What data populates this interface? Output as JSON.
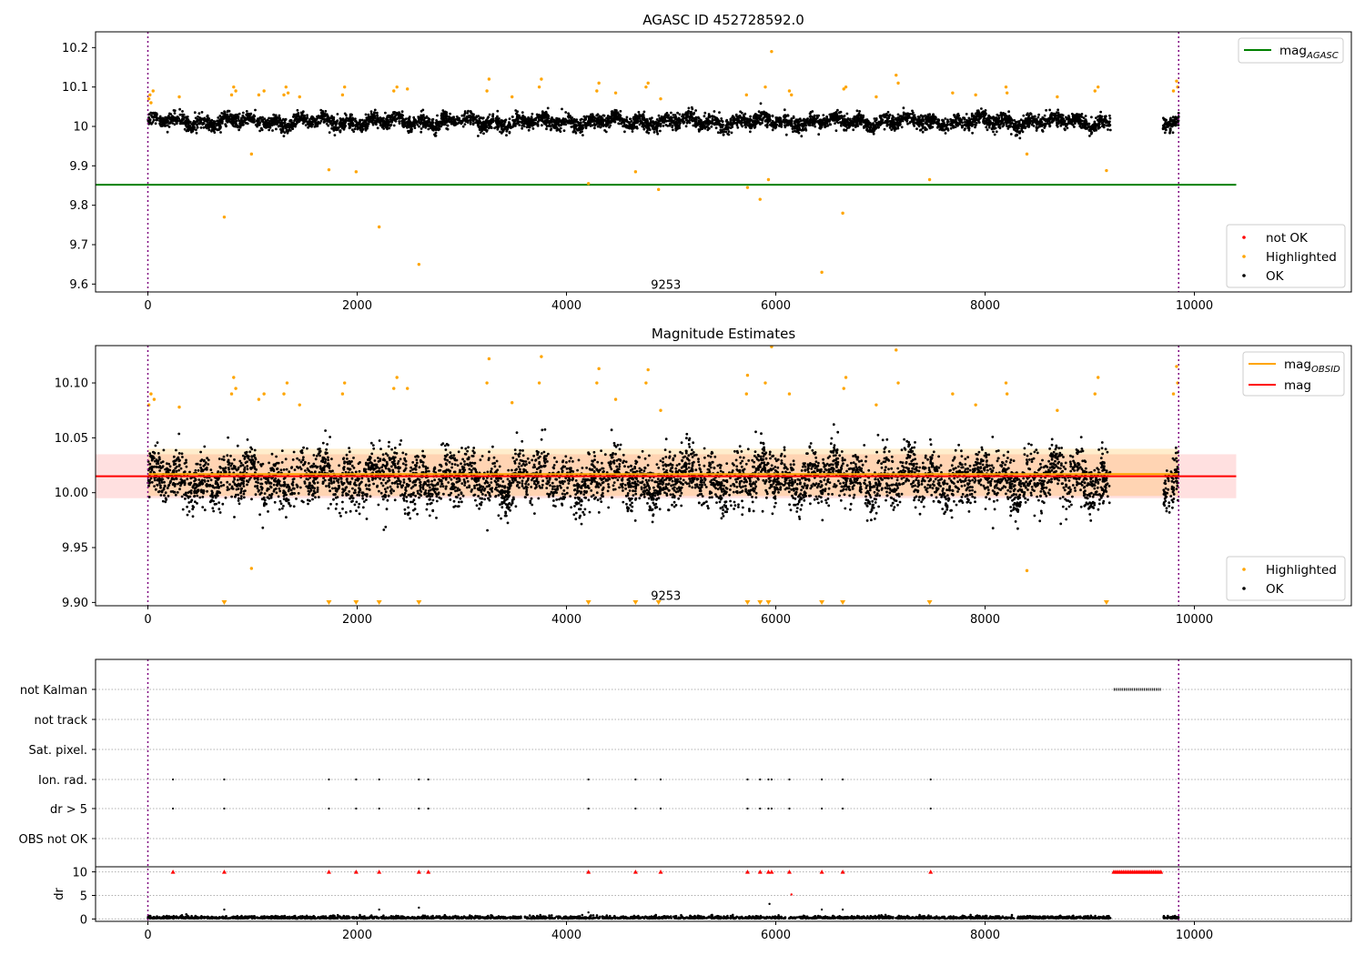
{
  "chart_data": [
    {
      "type": "scatter",
      "title": "AGASC ID 452728592.0",
      "xlim": [
        -500,
        11500
      ],
      "ylim": [
        9.58,
        10.24
      ],
      "xticks": [
        0,
        2000,
        4000,
        6000,
        8000,
        10000
      ],
      "yticks": [
        9.6,
        9.7,
        9.8,
        9.9,
        10.0,
        10.1,
        10.2
      ],
      "vlines": [
        0,
        9850
      ],
      "obsid_label": {
        "text": "9253",
        "x": 4950,
        "y": 9.595
      },
      "hline": {
        "name": "mag_AGASC",
        "y": 9.852,
        "x": [
          -500,
          10400
        ],
        "color": "#008000"
      },
      "legend_lines": [
        {
          "base": "mag",
          "sub": "AGASC",
          "color": "#008000"
        }
      ],
      "legend_points": [
        {
          "label": "not OK",
          "color": "#ff0000"
        },
        {
          "label": "Highlighted",
          "color": "#ffa500"
        },
        {
          "label": "OK",
          "color": "#000000"
        }
      ],
      "data_segments_x": [
        [
          0,
          9200
        ],
        [
          9700,
          9850
        ]
      ],
      "ok_band": {
        "base": 10.012,
        "spread": 0.018
      },
      "highlighted_points": [
        [
          10,
          10.07
        ],
        [
          20,
          10.08
        ],
        [
          30,
          10.06
        ],
        [
          50,
          10.09
        ],
        [
          300,
          10.075
        ],
        [
          730,
          9.77
        ],
        [
          800,
          10.08
        ],
        [
          820,
          10.1
        ],
        [
          840,
          10.09
        ],
        [
          990,
          9.93
        ],
        [
          1060,
          10.08
        ],
        [
          1110,
          10.09
        ],
        [
          1300,
          10.08
        ],
        [
          1320,
          10.1
        ],
        [
          1340,
          10.085
        ],
        [
          1450,
          10.075
        ],
        [
          1730,
          9.89
        ],
        [
          1860,
          10.08
        ],
        [
          1880,
          10.1
        ],
        [
          1990,
          9.885
        ],
        [
          2210,
          9.745
        ],
        [
          2350,
          10.09
        ],
        [
          2380,
          10.1
        ],
        [
          2480,
          10.095
        ],
        [
          2590,
          9.65
        ],
        [
          3240,
          10.09
        ],
        [
          3260,
          10.12
        ],
        [
          3480,
          10.075
        ],
        [
          3740,
          10.1
        ],
        [
          3760,
          10.12
        ],
        [
          4210,
          9.855
        ],
        [
          4290,
          10.09
        ],
        [
          4310,
          10.11
        ],
        [
          4470,
          10.085
        ],
        [
          4660,
          9.885
        ],
        [
          4760,
          10.1
        ],
        [
          4780,
          10.11
        ],
        [
          4880,
          9.84
        ],
        [
          4900,
          10.07
        ],
        [
          5720,
          10.08
        ],
        [
          5730,
          9.845
        ],
        [
          5850,
          9.815
        ],
        [
          5900,
          10.1
        ],
        [
          5930,
          9.865
        ],
        [
          5960,
          10.19
        ],
        [
          6130,
          10.09
        ],
        [
          6150,
          10.08
        ],
        [
          6440,
          9.63
        ],
        [
          6640,
          9.78
        ],
        [
          6650,
          10.095
        ],
        [
          6670,
          10.1
        ],
        [
          6960,
          10.075
        ],
        [
          7150,
          10.13
        ],
        [
          7170,
          10.11
        ],
        [
          7470,
          9.865
        ],
        [
          7690,
          10.085
        ],
        [
          7910,
          10.08
        ],
        [
          8200,
          10.1
        ],
        [
          8210,
          10.085
        ],
        [
          8400,
          9.93
        ],
        [
          8690,
          10.075
        ],
        [
          9050,
          10.09
        ],
        [
          9080,
          10.1
        ],
        [
          9160,
          9.888
        ],
        [
          9800,
          10.09
        ],
        [
          9830,
          10.115
        ],
        [
          9840,
          10.1
        ]
      ]
    },
    {
      "type": "scatter",
      "title": "Magnitude Estimates",
      "xlim": [
        -500,
        11500
      ],
      "ylim": [
        9.897,
        10.134
      ],
      "xticks": [
        0,
        2000,
        4000,
        6000,
        8000,
        10000
      ],
      "yticks": [
        9.9,
        9.95,
        10.0,
        10.05,
        10.1
      ],
      "ytick_labels": [
        "9.90",
        "9.95",
        "10.00",
        "10.05",
        "10.10"
      ],
      "vlines": [
        0,
        9850
      ],
      "obsid_label": {
        "text": "9253",
        "x": 4950,
        "y": 9.905
      },
      "mag_line": {
        "name": "mag",
        "y": 10.015,
        "x": [
          -500,
          10400
        ],
        "color": "#ff0000",
        "band": [
          9.995,
          10.035
        ]
      },
      "mag_obsid_line": {
        "name": "mag_OBSID",
        "y": 10.017,
        "x": [
          0,
          9850
        ],
        "color": "#ffa500",
        "band": [
          9.997,
          10.04
        ]
      },
      "legend_lines": [
        {
          "base": "mag",
          "sub": "OBSID",
          "color": "#ffa500"
        },
        {
          "base": "mag",
          "sub": "",
          "color": "#ff0000"
        }
      ],
      "legend_points": [
        {
          "label": "Highlighted",
          "color": "#ffa500"
        },
        {
          "label": "OK",
          "color": "#000000"
        }
      ],
      "data_segments_x": [
        [
          0,
          9200
        ],
        [
          9700,
          9850
        ]
      ],
      "ok_band": {
        "base": 10.012,
        "spread": 0.024
      },
      "highlighted_points": [
        [
          10,
          10.08
        ],
        [
          30,
          10.09
        ],
        [
          60,
          10.085
        ],
        [
          300,
          10.078
        ],
        [
          800,
          10.09
        ],
        [
          820,
          10.105
        ],
        [
          840,
          10.095
        ],
        [
          990,
          9.931
        ],
        [
          1060,
          10.085
        ],
        [
          1110,
          10.09
        ],
        [
          1300,
          10.09
        ],
        [
          1330,
          10.1
        ],
        [
          1450,
          10.08
        ],
        [
          1860,
          10.09
        ],
        [
          1880,
          10.1
        ],
        [
          2350,
          10.095
        ],
        [
          2380,
          10.105
        ],
        [
          2480,
          10.095
        ],
        [
          3240,
          10.1
        ],
        [
          3260,
          10.122
        ],
        [
          3480,
          10.082
        ],
        [
          3740,
          10.1
        ],
        [
          3760,
          10.124
        ],
        [
          4290,
          10.1
        ],
        [
          4310,
          10.113
        ],
        [
          4470,
          10.085
        ],
        [
          4760,
          10.1
        ],
        [
          4780,
          10.112
        ],
        [
          4900,
          10.075
        ],
        [
          5720,
          10.09
        ],
        [
          5730,
          10.107
        ],
        [
          5900,
          10.1
        ],
        [
          5960,
          10.133
        ],
        [
          6130,
          10.09
        ],
        [
          6650,
          10.095
        ],
        [
          6670,
          10.105
        ],
        [
          6960,
          10.08
        ],
        [
          7150,
          10.13
        ],
        [
          7170,
          10.1
        ],
        [
          7690,
          10.09
        ],
        [
          7910,
          10.08
        ],
        [
          8200,
          10.1
        ],
        [
          8210,
          10.09
        ],
        [
          8400,
          9.929
        ],
        [
          8690,
          10.075
        ],
        [
          9050,
          10.09
        ],
        [
          9080,
          10.105
        ],
        [
          9800,
          10.09
        ],
        [
          9830,
          10.115
        ],
        [
          9840,
          10.1
        ]
      ],
      "clipped_markers_x": [
        730,
        1730,
        1990,
        2210,
        2590,
        4210,
        4660,
        4880,
        5730,
        5850,
        5930,
        6440,
        6640,
        7470,
        9160
      ]
    },
    {
      "type": "scatter",
      "title": "",
      "xlim": [
        -500,
        11500
      ],
      "xticks": [
        0,
        2000,
        4000,
        6000,
        8000,
        10000
      ],
      "vlines": [
        0,
        9850
      ],
      "flag_rows": [
        "not Kalman",
        "not track",
        "Sat. pixel.",
        "Ion. rad.",
        "dr > 5",
        "OBS not OK"
      ],
      "flags": {
        "not Kalman": {
          "range": [
            9230,
            9680
          ]
        },
        "Ion. rad.": {
          "x": [
            240,
            730,
            1730,
            1990,
            2210,
            2590,
            2680,
            4210,
            4660,
            4900,
            5730,
            5850,
            5930,
            5960,
            6130,
            6440,
            6640,
            7480
          ]
        },
        "dr > 5": {
          "x": [
            240,
            730,
            1730,
            1990,
            2210,
            2590,
            2680,
            4210,
            4660,
            4900,
            5730,
            5850,
            5930,
            5960,
            6130,
            6440,
            6640,
            7480
          ]
        }
      },
      "dr_ylabel": "dr",
      "dr_yticks": [
        0,
        5,
        10
      ],
      "dr_ylim": [
        -0.5,
        10.5
      ],
      "dr_clipped_x": [
        240,
        730,
        1730,
        1990,
        2210,
        2590,
        2680,
        4210,
        4660,
        4900,
        5730,
        5850,
        5930,
        5960,
        6130,
        6440,
        6640,
        7480
      ],
      "dr_clipped_range": [
        9230,
        9680
      ],
      "dr_extra_points": [
        [
          6150,
          5.2
        ],
        [
          5940,
          3.2
        ],
        [
          730,
          2.0
        ],
        [
          2210,
          2.0
        ],
        [
          2590,
          2.4
        ],
        [
          6640,
          2.0
        ],
        [
          4210,
          1.4
        ],
        [
          6440,
          2.0
        ]
      ]
    }
  ]
}
